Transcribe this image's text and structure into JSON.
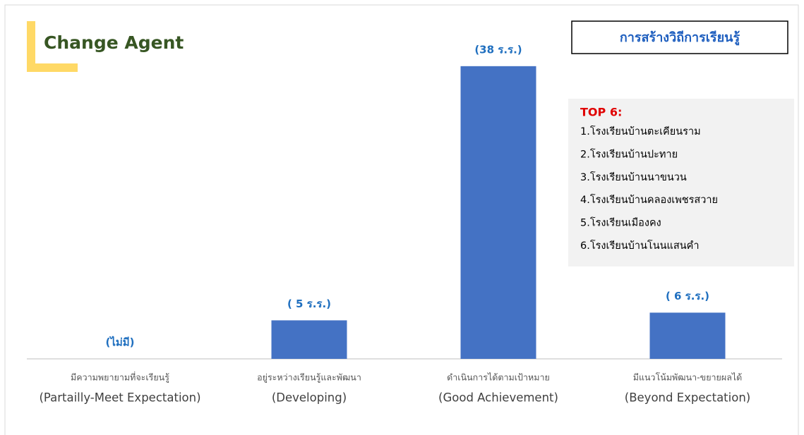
{
  "title": "Change Agent",
  "badge": "การสร้างวิถีการเรียนรู้",
  "top_list": {
    "heading": "TOP 6:",
    "items": [
      "1.โรงเรียนบ้านตะเคียนราม",
      "2.โรงเรียนบ้านปะทาย",
      "3.โรงเรียนบ้านนาขนวน",
      "4.โรงเรียนบ้านคลองเพชรสวาย",
      "5.โรงเรียนเมืองคง",
      "6.โรงเรียนบ้านโนนแสนคำ"
    ]
  },
  "chart_data": {
    "type": "bar",
    "categories": [
      [
        "มีความพยายามที่จะเรียนรู้",
        "(Partailly-Meet Expectation)"
      ],
      [
        "อยู่ระหว่างเรียนรู้และพัฒนา",
        "(Developing)"
      ],
      [
        "ดำเนินการได้ตามเป้าหมาย",
        "(Good Achievement)"
      ],
      [
        "มีแนวโน้มพัฒนา-ขยายผลได้",
        "(Beyond Expectation)"
      ]
    ],
    "values": [
      0,
      5,
      38,
      6
    ],
    "value_labels": [
      "(ไม่มี)",
      "( 5 ร.ร.)",
      "(38 ร.ร.)",
      "( 6 ร.ร.)"
    ],
    "color": "#4472c4",
    "ylim": [
      0,
      40
    ]
  }
}
